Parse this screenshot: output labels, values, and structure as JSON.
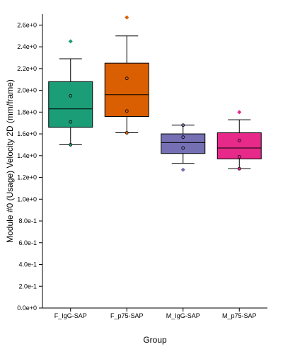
{
  "chart_data": {
    "type": "box",
    "title": "",
    "xlabel": "Group",
    "ylabel": "Module #0 (Usage) Velocity 2D (mm/frame)",
    "ylim": [
      0,
      2.7
    ],
    "yticks": [
      0,
      0.2,
      0.4,
      0.6,
      0.8,
      1.0,
      1.2,
      1.4,
      1.6,
      1.8,
      2.0,
      2.2,
      2.4,
      2.6
    ],
    "ytick_labels": [
      "0.0e+0",
      "2.0e-1",
      "4.0e-1",
      "6.0e-1",
      "8.0e-1",
      "1.0e+0",
      "1.2e+0",
      "1.4e+0",
      "1.6e+0",
      "1.8e+0",
      "2.0e+0",
      "2.2e+0",
      "2.4e+0",
      "2.6e+0"
    ],
    "categories": [
      "F_IgG-SAP",
      "F_p75-SAP",
      "M_IgG-SAP",
      "M_p75-SAP"
    ],
    "boxes": [
      {
        "group": "F_IgG-SAP",
        "color": "#1b9e77",
        "whisker_low": 1.5,
        "q1": 1.66,
        "median": 1.83,
        "q3": 2.08,
        "whisker_high": 2.29,
        "points": [
          1.5,
          1.71,
          1.95
        ],
        "outliers": [
          2.45
        ]
      },
      {
        "group": "F_p75-SAP",
        "color": "#d95f02",
        "whisker_low": 1.61,
        "q1": 1.76,
        "median": 1.96,
        "q3": 2.25,
        "whisker_high": 2.5,
        "points": [
          1.61,
          1.81,
          2.11
        ],
        "outliers": [
          2.67
        ]
      },
      {
        "group": "M_IgG-SAP",
        "color": "#7570b3",
        "whisker_low": 1.33,
        "q1": 1.42,
        "median": 1.52,
        "q3": 1.6,
        "whisker_high": 1.68,
        "points": [
          1.47,
          1.57,
          1.68
        ],
        "outliers": [
          1.27
        ]
      },
      {
        "group": "M_p75-SAP",
        "color": "#e7298a",
        "whisker_low": 1.28,
        "q1": 1.37,
        "median": 1.47,
        "q3": 1.61,
        "whisker_high": 1.73,
        "points": [
          1.28,
          1.39,
          1.54
        ],
        "outliers": [
          1.8
        ]
      }
    ],
    "grid": false,
    "legend": "none"
  }
}
